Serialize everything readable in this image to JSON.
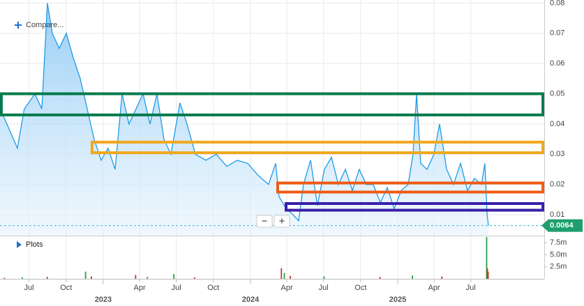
{
  "chart_data": [
    {
      "type": "area",
      "color": "#1e9be6",
      "x": [
        2022.299,
        2022.346,
        2022.417,
        2022.464,
        2022.536,
        2022.583,
        2022.621,
        2022.654,
        2022.701,
        2022.749,
        2022.796,
        2022.844,
        2022.891,
        2022.938,
        2022.986,
        2023.033,
        2023.081,
        2023.128,
        2023.175,
        2023.223,
        2023.27,
        2023.318,
        2023.365,
        2023.412,
        2023.46,
        2023.521,
        2023.569,
        2023.626,
        2023.697,
        2023.768,
        2023.839,
        2023.91,
        2023.981,
        2024.052,
        2024.123,
        2024.171,
        2024.194,
        2024.242,
        2024.289,
        2024.327,
        2024.36,
        2024.408,
        2024.455,
        2024.502,
        2024.55,
        2024.597,
        2024.645,
        2024.692,
        2024.739,
        2024.787,
        2024.834,
        2024.882,
        2024.929,
        2024.976,
        2025.024,
        2025.071,
        2025.104,
        2025.128,
        2025.156,
        2025.199,
        2025.246,
        2025.284,
        2025.332,
        2025.379,
        2025.427,
        2025.474,
        2025.521,
        2025.569,
        2025.592,
        2025.607,
        2025.616
      ],
      "values": [
        0.045,
        0.04,
        0.032,
        0.045,
        0.05,
        0.045,
        0.08,
        0.07,
        0.065,
        0.07,
        0.062,
        0.055,
        0.045,
        0.035,
        0.028,
        0.032,
        0.025,
        0.05,
        0.04,
        0.045,
        0.05,
        0.04,
        0.05,
        0.035,
        0.03,
        0.047,
        0.04,
        0.03,
        0.028,
        0.03,
        0.026,
        0.028,
        0.027,
        0.023,
        0.02,
        0.027,
        0.016,
        0.012,
        0.01,
        0.008,
        0.02,
        0.028,
        0.013,
        0.025,
        0.029,
        0.02,
        0.025,
        0.018,
        0.025,
        0.02,
        0.02,
        0.014,
        0.019,
        0.012,
        0.018,
        0.02,
        0.03,
        0.05,
        0.027,
        0.025,
        0.03,
        0.04,
        0.025,
        0.02,
        0.027,
        0.018,
        0.022,
        0.02,
        0.027,
        0.01,
        0.0064
      ],
      "xlim": [
        2022.299,
        2025.995
      ],
      "ylim": [
        0.0031,
        0.081
      ],
      "yticks": [
        0.01,
        0.02,
        0.03,
        0.04,
        0.05,
        0.06,
        0.07,
        0.08
      ],
      "xticks": [
        {
          "value": 2022.496,
          "label": "Jul"
        },
        {
          "value": 2022.748,
          "label": "Oct"
        },
        {
          "value": 2023.247,
          "label": "Apr"
        },
        {
          "value": 2023.496,
          "label": "Jul"
        },
        {
          "value": 2023.748,
          "label": "Oct"
        },
        {
          "value": 2024.247,
          "label": "Apr"
        },
        {
          "value": 2024.496,
          "label": "Jul"
        },
        {
          "value": 2024.748,
          "label": "Oct"
        },
        {
          "value": 2025.247,
          "label": "Apr"
        },
        {
          "value": 2025.496,
          "label": "Jul"
        }
      ],
      "year_ticks": [
        2023,
        2024,
        2025
      ],
      "grid": true,
      "last_price": 0.0064,
      "last_price_color": "#1f9e6e",
      "zones": [
        {
          "from": 0.043,
          "to": 0.05,
          "start": 2022.308,
          "end": 2025.986,
          "color": "#007a4d"
        },
        {
          "from": 0.0305,
          "to": 0.034,
          "start": 2022.924,
          "end": 2025.986,
          "color": "#f0a820"
        },
        {
          "from": 0.0175,
          "to": 0.0205,
          "start": 2024.185,
          "end": 2025.986,
          "color": "#ef5a14"
        },
        {
          "from": 0.0115,
          "to": 0.0137,
          "start": 2024.242,
          "end": 2025.986,
          "color": "#3a1fa8"
        }
      ]
    },
    {
      "type": "bar",
      "x": [
        2022.33,
        2022.45,
        2022.62,
        2022.88,
        2022.92,
        2023.22,
        2023.3,
        2023.48,
        2023.62,
        2024.21,
        2024.23,
        2024.27,
        2024.5,
        2024.88,
        2025.1,
        2025.3,
        2025.604,
        2025.609,
        2025.614
      ],
      "values": [
        200000,
        300000,
        400000,
        1500000,
        500000,
        800000,
        400000,
        1000000,
        300000,
        2200000,
        1200000,
        600000,
        500000,
        400000,
        700000,
        500000,
        8700000,
        2200000,
        1500000
      ],
      "colors": [
        "#c0392b",
        "#2e9d46",
        "#c0392b",
        "#2e9d46",
        "#c0392b",
        "#c0392b",
        "#2e9d46",
        "#2e9d46",
        "#c0392b",
        "#c0392b",
        "#2e9d46",
        "#c0392b",
        "#2e9d46",
        "#c0392b",
        "#2e9d46",
        "#c0392b",
        "#2e9d46",
        "#c0392b",
        "#c0392b"
      ],
      "xlim": [
        2022.299,
        2025.995
      ],
      "ylim": [
        0,
        8700000
      ],
      "yticks": [
        {
          "value": 2500000,
          "label": "2.5m"
        },
        {
          "value": 5000000,
          "label": "5.0m"
        },
        {
          "value": 7500000,
          "label": "7.5m"
        }
      ]
    }
  ],
  "ui": {
    "compare": "Compare...",
    "plots": "Plots",
    "zoom": [
      "−",
      "+"
    ]
  }
}
